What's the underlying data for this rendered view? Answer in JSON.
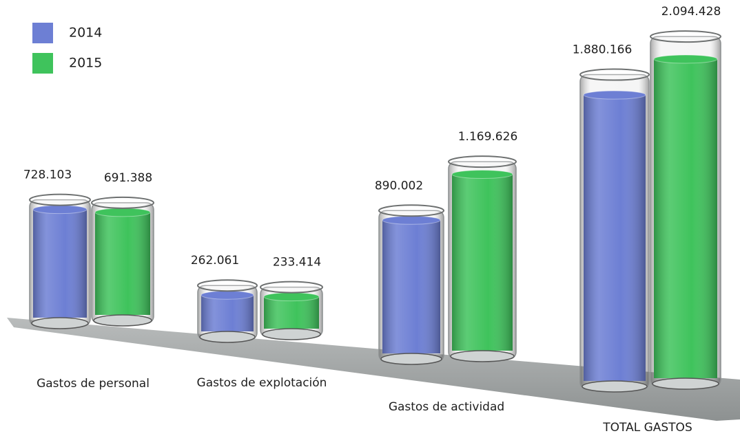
{
  "chart_data": {
    "type": "bar",
    "categories": [
      "Gastos de personal",
      "Gastos de explotación",
      "Gastos de actividad",
      "TOTAL GASTOS"
    ],
    "series": [
      {
        "name": "2014",
        "color": "#6d7fd4",
        "values": [
          728103,
          262061,
          890002,
          1880166
        ],
        "value_labels": [
          "728.103",
          "262.061",
          "890.002",
          "1.880.166"
        ]
      },
      {
        "name": "2015",
        "color": "#3fc35c",
        "values": [
          691388,
          233414,
          1169626,
          2094428
        ],
        "value_labels": [
          "691.388",
          "233.414",
          "1.169.626",
          "2.094.428"
        ]
      }
    ]
  }
}
